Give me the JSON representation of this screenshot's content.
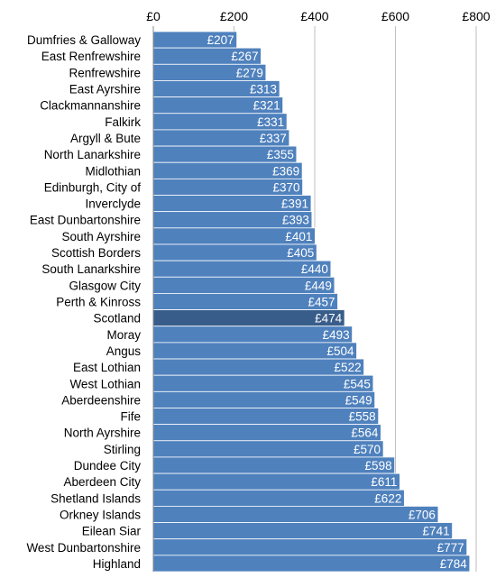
{
  "chart_data": {
    "type": "bar",
    "orientation": "horizontal",
    "title": "",
    "xlabel": "",
    "ylabel": "",
    "xlim": [
      0,
      800
    ],
    "x_ticks": [
      0,
      200,
      400,
      600,
      800
    ],
    "x_tick_labels": [
      "£0",
      "£200",
      "£400",
      "£600",
      "£800"
    ],
    "tick_position": "top",
    "grid": true,
    "legend": "none",
    "value_prefix": "£",
    "colors": {
      "bar": "#4F81BD",
      "highlight": "#385D8A",
      "bar_edge": "#ffffff"
    },
    "highlight_category": "Scotland",
    "categories": [
      "Dumfries & Galloway",
      "East Renfrewshire",
      "Renfrewshire",
      "East Ayrshire",
      "Clackmannanshire",
      "Falkirk",
      "Argyll & Bute",
      "North Lanarkshire",
      "Midlothian",
      "Edinburgh, City of",
      "Inverclyde",
      "East Dunbartonshire",
      "South Ayrshire",
      "Scottish Borders",
      "South Lanarkshire",
      "Glasgow City",
      "Perth & Kinross",
      "Scotland",
      "Moray",
      "Angus",
      "East Lothian",
      "West Lothian",
      "Aberdeenshire",
      "Fife",
      "North Ayrshire",
      "Stirling",
      "Dundee City",
      "Aberdeen City",
      "Shetland Islands",
      "Orkney Islands",
      "Eilean Siar",
      "West Dunbartonshire",
      "Highland"
    ],
    "values": [
      207,
      267,
      279,
      313,
      321,
      331,
      337,
      355,
      369,
      370,
      391,
      393,
      401,
      405,
      440,
      449,
      457,
      474,
      493,
      504,
      522,
      545,
      549,
      558,
      564,
      570,
      598,
      611,
      622,
      706,
      741,
      777,
      784
    ],
    "data_labels": [
      "£207",
      "£267",
      "£279",
      "£313",
      "£321",
      "£331",
      "£337",
      "£355",
      "£369",
      "£370",
      "£391",
      "£393",
      "£401",
      "£405",
      "£440",
      "£449",
      "£457",
      "£474",
      "£493",
      "£504",
      "£522",
      "£545",
      "£549",
      "£558",
      "£564",
      "£570",
      "£598",
      "£611",
      "£622",
      "£706",
      "£741",
      "£777",
      "£784"
    ]
  }
}
